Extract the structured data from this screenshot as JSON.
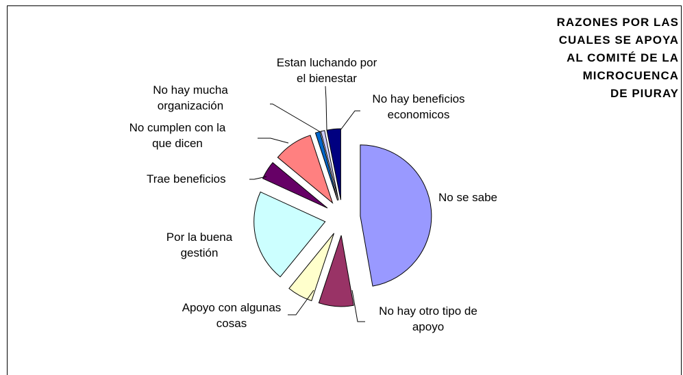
{
  "chart_data": {
    "type": "pie",
    "title": [
      "RAZONES POR LAS",
      "CUALES SE APOYA",
      "AL COMITÉ DE LA",
      "MICROCUENCA",
      "DE PIURAY"
    ],
    "slices": [
      {
        "label": [
          "No se sabe"
        ],
        "value": 45,
        "color": "#9999ff"
      },
      {
        "label": [
          "No hay otro tipo de",
          "apoyo"
        ],
        "value": 7.5,
        "color": "#993366"
      },
      {
        "label": [
          "Apoyo con algunas",
          "cosas"
        ],
        "value": 5.5,
        "color": "#ffffcc"
      },
      {
        "label": [
          "Por la buena",
          "gestión"
        ],
        "value": 20,
        "color": "#ccffff"
      },
      {
        "label": [
          "Trae beneficios"
        ],
        "value": 4,
        "color": "#660066"
      },
      {
        "label": [
          "No cumplen con la",
          "que dicen"
        ],
        "value": 8.5,
        "color": "#ff8080"
      },
      {
        "label": [
          "No hay mucha",
          "organización"
        ],
        "value": 1,
        "color": "#0066cc"
      },
      {
        "label": [
          "Estan luchando por",
          "el bienestar"
        ],
        "value": 0.8,
        "color": "#ccccff"
      },
      {
        "label": [
          "No hay beneficios",
          "economicos"
        ],
        "value": 3,
        "color": "#000080"
      }
    ]
  }
}
